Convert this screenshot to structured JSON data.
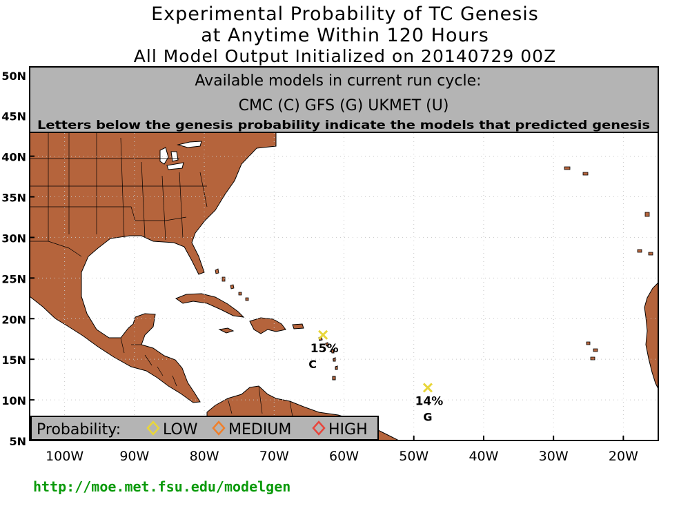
{
  "title": {
    "line1": "Experimental Probability of TC Genesis",
    "line2": "at Anytime Within 120 Hours",
    "line3": "All Model Output Initialized on 20140729 00Z"
  },
  "models_box": {
    "heading": "Available models in current run cycle:",
    "models": "CMC (C) GFS (G)  UKMET (U)",
    "note": "Letters below the genesis probability indicate the models that predicted genesis"
  },
  "axes": {
    "lat_labels": [
      "50N",
      "45N",
      "40N",
      "35N",
      "30N",
      "25N",
      "20N",
      "15N",
      "10N",
      "5N"
    ],
    "lon_labels": [
      "100W",
      "90W",
      "80W",
      "70W",
      "60W",
      "50W",
      "40W",
      "30W",
      "20W"
    ]
  },
  "genesis_points": [
    {
      "prob_label": "15%",
      "models": "C",
      "lon": -63,
      "lat": 18,
      "level": "low"
    },
    {
      "prob_label": "14%",
      "models": "G",
      "lon": -48,
      "lat": 11.5,
      "level": "low"
    }
  ],
  "legend": {
    "label": "Probability:",
    "low": "LOW",
    "medium": "MEDIUM",
    "high": "HIGH"
  },
  "colors": {
    "land": "#b5643c",
    "low": "#e8d63a",
    "medium": "#f07f2a",
    "high": "#e8453c",
    "box_bg": "#b4b4b4",
    "url": "#0a9a0a"
  },
  "url": "http://moe.met.fsu.edu/modelgen"
}
